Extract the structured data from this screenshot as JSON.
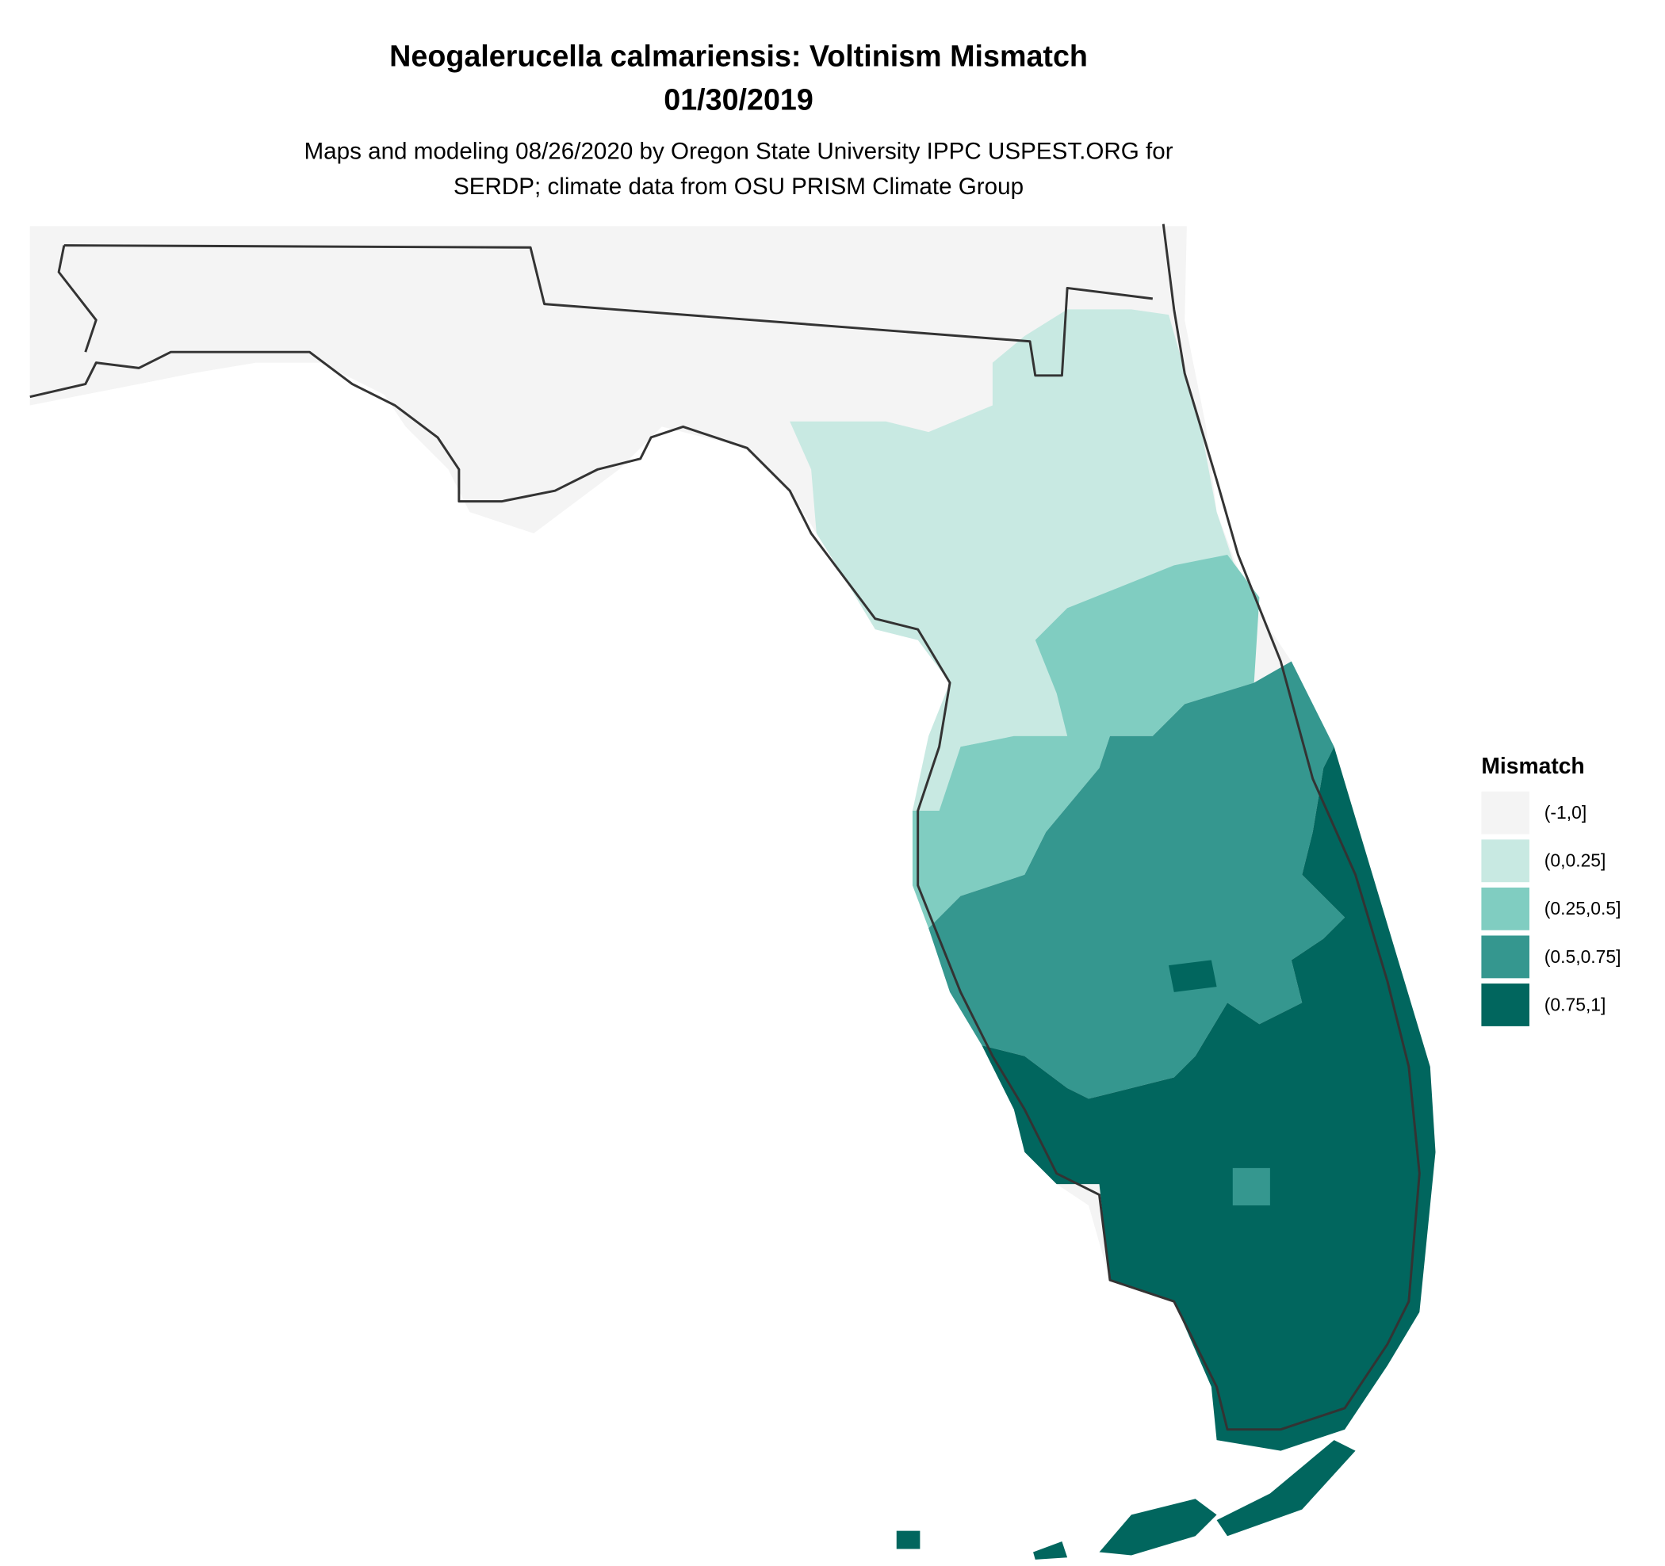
{
  "title": "Neogalerucella calmariensis: Voltinism Mismatch",
  "date": "01/30/2019",
  "subtitle": [
    "Maps and modeling 08/26/2020 by Oregon State University IPPC USPEST.ORG for",
    "SERDP; climate data from OSU PRISM Climate Group"
  ],
  "legend": {
    "title": "Mismatch",
    "items": [
      {
        "label": "(-1,0]",
        "color": "#f4f4f4"
      },
      {
        "label": "(0,0.25]",
        "color": "#c8e9e2"
      },
      {
        "label": "(0.25,0.5]",
        "color": "#80cdc1"
      },
      {
        "label": "(0.5,0.75]",
        "color": "#35978f"
      },
      {
        "label": "(0.75,1]",
        "color": "#01665e"
      }
    ]
  }
}
